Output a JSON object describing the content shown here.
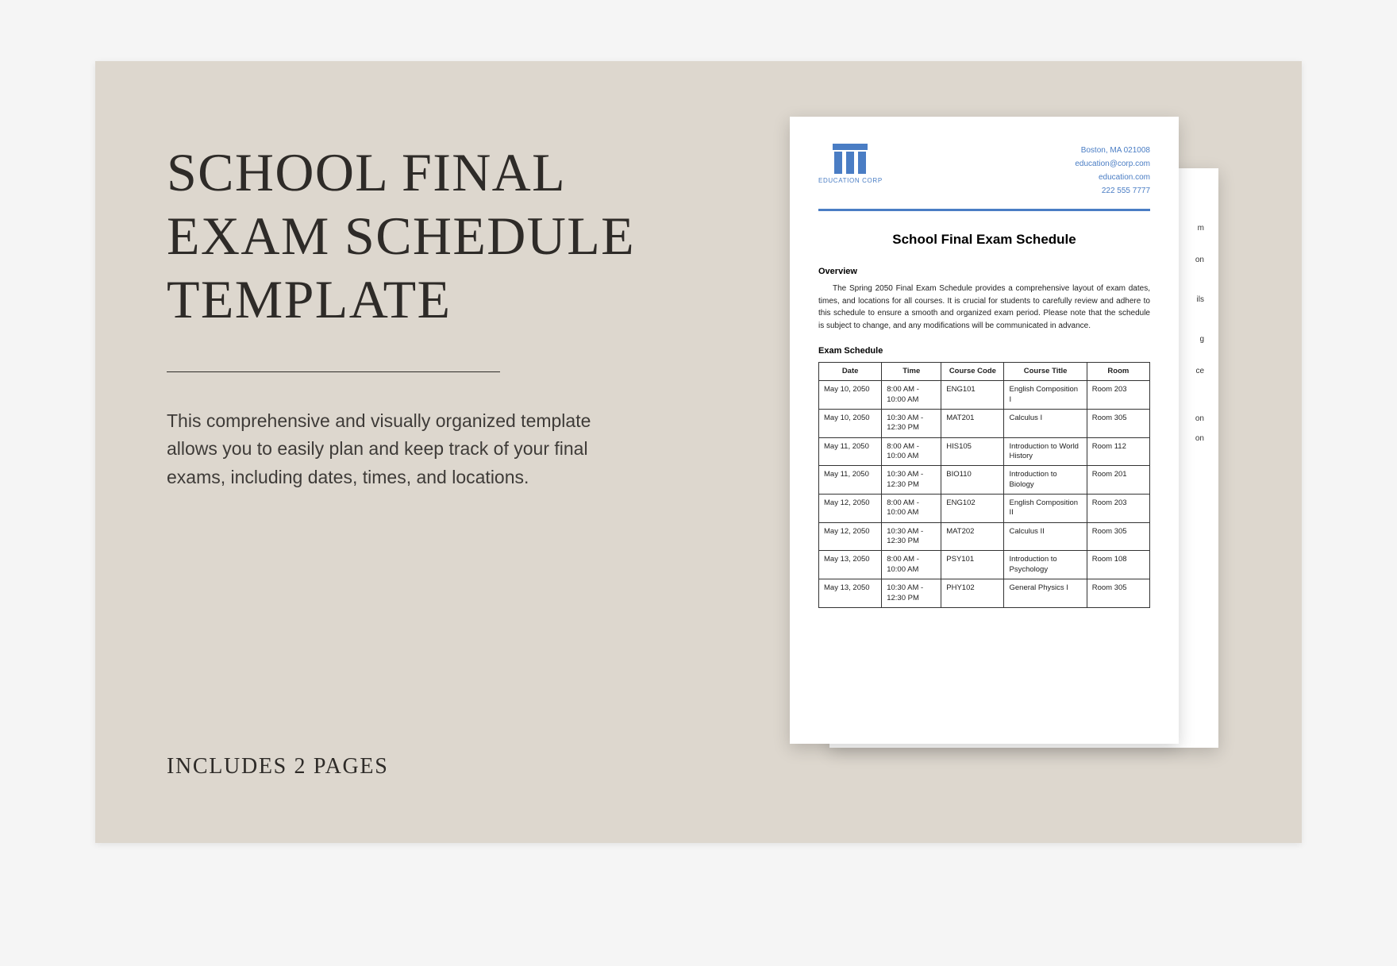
{
  "left": {
    "title_l1": "SCHOOL FINAL",
    "title_l2": "EXAM SCHEDULE",
    "title_l3": "TEMPLATE",
    "description": "This comprehensive and visually organized template allows you to easily plan and keep track of your final exams, including dates, times, and locations.",
    "pages_label": "INCLUDES 2 PAGES"
  },
  "colors": {
    "canvas_bg": "#ddd7ce",
    "text_dark": "#2e2b28",
    "accent_blue": "#4a7dc4",
    "page_bg": "#ffffff"
  },
  "doc": {
    "logo_name": "EDUCATION CORP",
    "contact": {
      "address": "Boston, MA 021008",
      "email": "education@corp.com",
      "site": "education.com",
      "phone": "222 555 7777"
    },
    "title": "School Final Exam Schedule",
    "overview_h": "Overview",
    "overview_body": "The Spring 2050 Final Exam Schedule provides a comprehensive layout of exam dates, times, and locations for all courses. It is crucial for students to carefully review and adhere to this schedule to ensure a smooth and organized exam period. Please note that the schedule is subject to change, and any modifications will be communicated in advance.",
    "schedule_h": "Exam Schedule",
    "columns": [
      "Date",
      "Time",
      "Course Code",
      "Course Title",
      "Room"
    ],
    "rows": [
      [
        "May 10, 2050",
        "8:00 AM - 10:00 AM",
        "ENG101",
        "English Composition I",
        "Room 203"
      ],
      [
        "May 10, 2050",
        "10:30 AM - 12:30 PM",
        "MAT201",
        "Calculus I",
        "Room 305"
      ],
      [
        "May 11, 2050",
        "8:00 AM - 10:00 AM",
        "HIS105",
        "Introduction to World History",
        "Room 112"
      ],
      [
        "May 11, 2050",
        "10:30 AM - 12:30 PM",
        "BIO110",
        "Introduction to Biology",
        "Room 201"
      ],
      [
        "May 12, 2050",
        "8:00 AM - 10:00 AM",
        "ENG102",
        "English Composition II",
        "Room 203"
      ],
      [
        "May 12, 2050",
        "10:30 AM - 12:30 PM",
        "MAT202",
        "Calculus II",
        "Room 305"
      ],
      [
        "May 13, 2050",
        "8:00 AM - 10:00 AM",
        "PSY101",
        "Introduction to Psychology",
        "Room 108"
      ],
      [
        "May 13, 2050",
        "10:30 AM - 12:30 PM",
        "PHY102",
        "General Physics I",
        "Room 305"
      ]
    ]
  },
  "back_stubs": [
    "m",
    "on",
    "ils",
    "g",
    "ce",
    "on",
    "on"
  ]
}
